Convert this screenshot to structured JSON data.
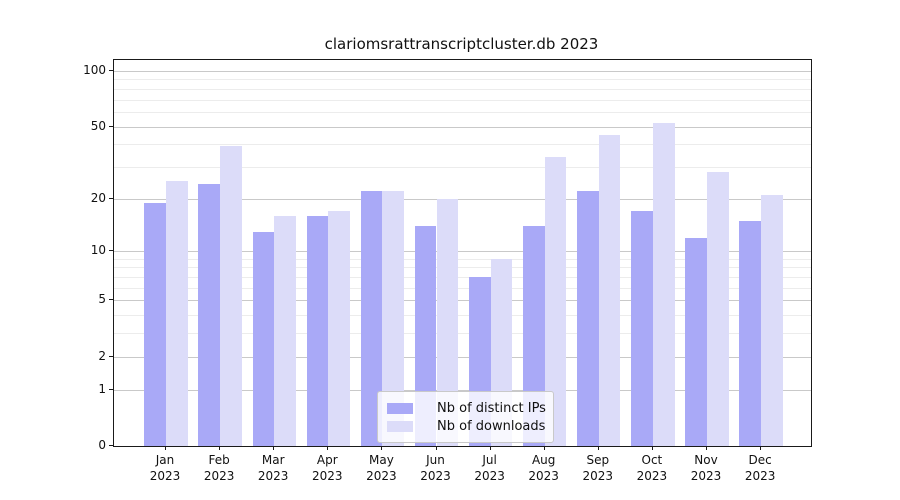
{
  "title": "clariomsrattranscriptcluster.db 2023",
  "year_label": "2023",
  "legend": {
    "items": [
      {
        "label": "Nb of distinct IPs",
        "color": "#a9a9f7"
      },
      {
        "label": "Nb of downloads",
        "color": "#dcdcf9"
      }
    ]
  },
  "colors": {
    "bar_distinct_ips": "#a9a9f7",
    "bar_downloads": "#dcdcf9",
    "axis": "#1a1a1a",
    "grid_major": "#c9c9c9",
    "grid_minor": "#ececec"
  },
  "chart_data": {
    "type": "bar",
    "title": "clariomsrattranscriptcluster.db 2023",
    "categories": [
      "Jan",
      "Feb",
      "Mar",
      "Apr",
      "May",
      "Jun",
      "Jul",
      "Aug",
      "Sep",
      "Oct",
      "Nov",
      "Dec"
    ],
    "category_year": "2023",
    "series": [
      {
        "name": "Nb of distinct IPs",
        "color": "#a9a9f7",
        "values": [
          19,
          24,
          13,
          16,
          22,
          14,
          7,
          14,
          22,
          17,
          12,
          15
        ]
      },
      {
        "name": "Nb of downloads",
        "color": "#dcdcf9",
        "values": [
          25,
          39,
          16,
          17,
          22,
          20,
          9,
          34,
          45,
          52,
          28,
          21
        ]
      }
    ],
    "xlabel": "",
    "ylabel": "",
    "y_scale": "log1p",
    "y_major_ticks": [
      100,
      50,
      20,
      10,
      5,
      2,
      1,
      0
    ],
    "y_minor_ticks": [
      3,
      4,
      6,
      7,
      8,
      9,
      30,
      40,
      60,
      70,
      80,
      90
    ],
    "ylim": [
      0,
      115
    ],
    "grid": true,
    "legend_position": "bottom-center"
  }
}
